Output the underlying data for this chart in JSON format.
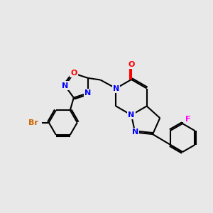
{
  "background_color": "#e8e8e8",
  "bond_color": "#000000",
  "atom_colors": {
    "N": "#0000ff",
    "O": "#ff0000",
    "F": "#ff00ff",
    "Br": "#cc6600",
    "C": "#000000"
  },
  "figsize": [
    3.0,
    3.0
  ],
  "dpi": 100
}
